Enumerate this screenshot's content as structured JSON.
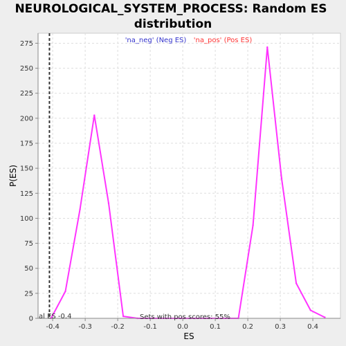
{
  "chart_data": {
    "type": "line",
    "title_line1": "NEUROLOGICAL_SYSTEM_PROCESS: Random ES",
    "title_line2": "distribution",
    "xlabel": "ES",
    "ylabel": "P(ES)",
    "xlim": [
      -0.445,
      0.485
    ],
    "ylim": [
      0,
      285
    ],
    "x_ticks": [
      -0.4,
      -0.3,
      -0.2,
      -0.1,
      0.0,
      0.1,
      0.2,
      0.3,
      0.4
    ],
    "x_tick_labels": [
      "-0.4",
      "-0.3",
      "-0.2",
      "-0.1",
      "0.0",
      "0.1",
      "0.2",
      "0.3",
      "0.4"
    ],
    "y_ticks": [
      0,
      25,
      50,
      75,
      100,
      125,
      150,
      175,
      200,
      225,
      250,
      275
    ],
    "y_tick_labels": [
      "0",
      "25",
      "50",
      "75",
      "100",
      "125",
      "150",
      "175",
      "200",
      "225",
      "250",
      "275"
    ],
    "grid": true,
    "legend": [
      {
        "label": "'na_neg' (Neg ES)",
        "color": "#3333cc"
      },
      {
        "label": "'na_pos' (Pos ES)",
        "color": "#ff3333"
      }
    ],
    "series": [
      {
        "color": "#ff33ff",
        "x": [
          -0.405,
          -0.361,
          -0.316,
          -0.272,
          -0.228,
          -0.183,
          -0.139,
          -0.095,
          -0.05,
          -0.006,
          0.038,
          0.083,
          0.127,
          0.171,
          0.216,
          0.26,
          0.304,
          0.349,
          0.393,
          0.437
        ],
        "y": [
          0,
          27,
          109,
          203,
          115,
          2,
          0,
          0,
          0,
          0,
          0,
          0,
          0,
          0,
          93,
          271,
          140,
          35,
          8,
          1
        ]
      }
    ],
    "vline": {
      "x": -0.41,
      "style": "dashed",
      "color": "#333333"
    },
    "annotations": {
      "actual_es": "al ES -0.4",
      "pos_scores": "Sets with pos scores: 55%"
    }
  }
}
